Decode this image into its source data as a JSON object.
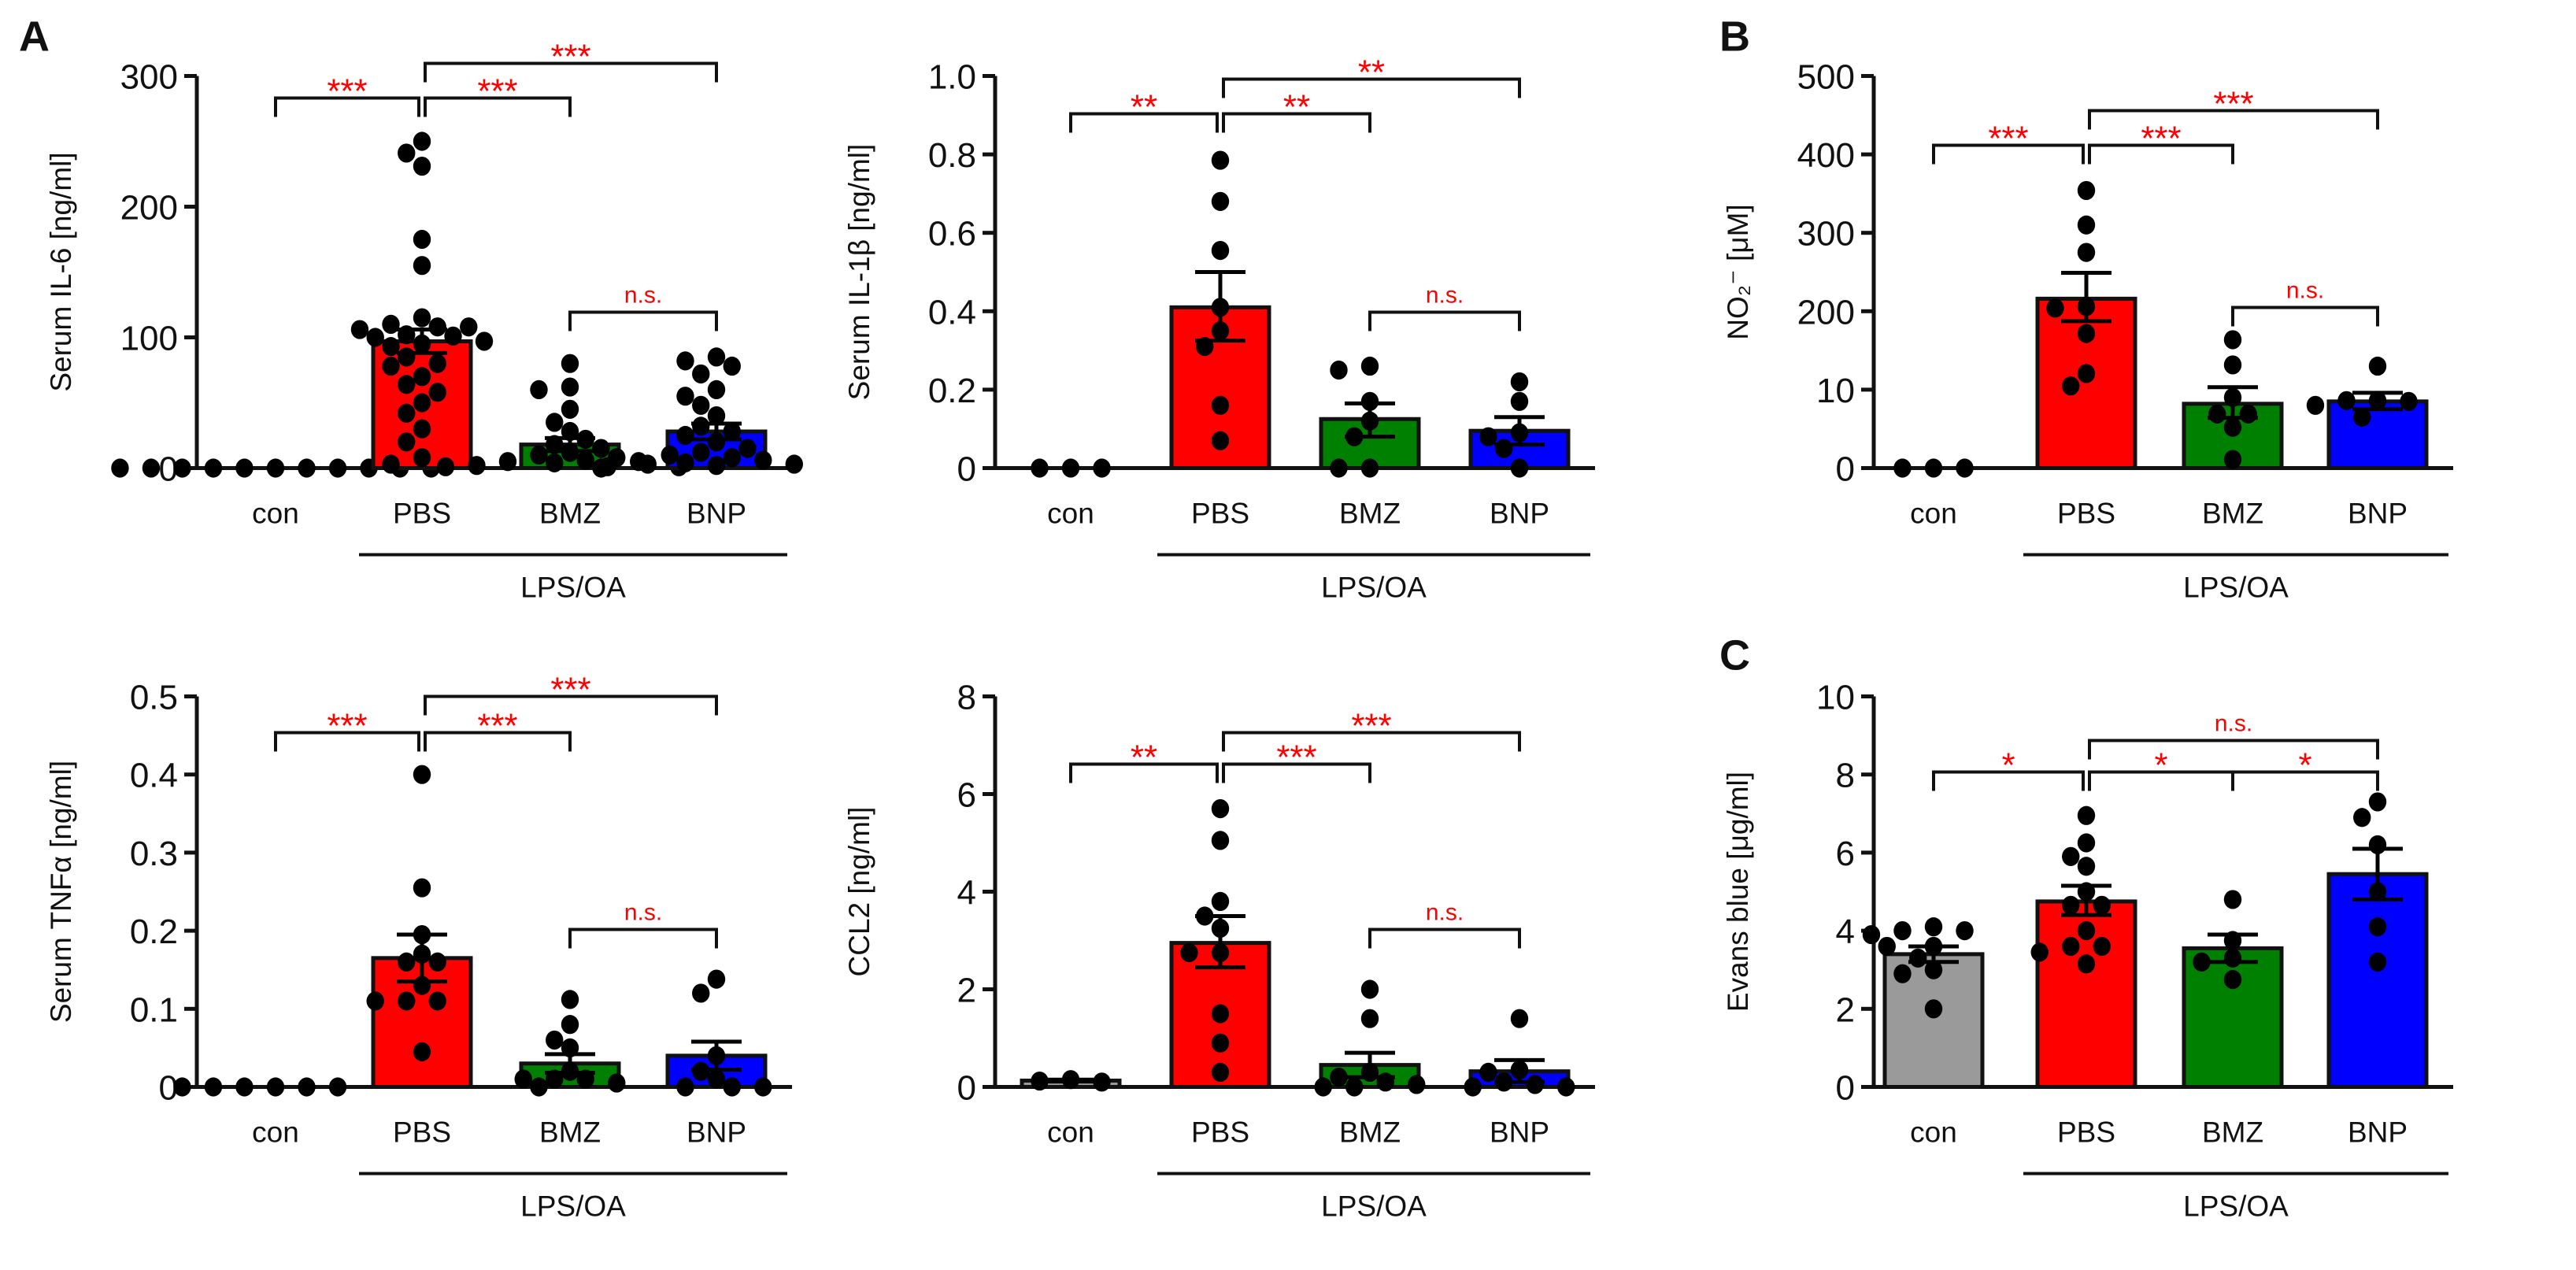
{
  "panel_letters": [
    "A",
    "B",
    "C"
  ],
  "colors": {
    "con": "#9a9a9a",
    "PBS": "#ff0000",
    "BMZ": "#008000",
    "BNP": "#0000ff",
    "significance": "#ff0000",
    "axis": "#111111"
  },
  "chart_data": [
    {
      "type": "bar",
      "title": "",
      "ylabel": "Serum IL-6 [ng/ml]",
      "yticks": [
        0,
        100,
        200,
        300
      ],
      "ytick_labels": [
        "0",
        "100",
        "200",
        "300"
      ],
      "ylim": [
        0,
        300
      ],
      "categories": [
        "con",
        "PBS",
        "BMZ",
        "BNP"
      ],
      "group_label": "LPS/OA",
      "means": [
        0,
        97,
        18,
        28
      ],
      "sem": [
        [
          0,
          0
        ],
        [
          88,
          106
        ],
        [
          13,
          23
        ],
        [
          22,
          34
        ]
      ],
      "points": [
        [
          0,
          0,
          0,
          0,
          0,
          0,
          0,
          0,
          0,
          0,
          0
        ],
        [
          250,
          241,
          231,
          175,
          155,
          115,
          110,
          108,
          108,
          106,
          102,
          101,
          100,
          97,
          95,
          93,
          85,
          80,
          78,
          70,
          64,
          58,
          50,
          42,
          30,
          20,
          8,
          3
        ],
        [
          80,
          62,
          60,
          45,
          35,
          28,
          22,
          18,
          15,
          12,
          10,
          8,
          6,
          5,
          4,
          3,
          2,
          1,
          1,
          0
        ],
        [
          85,
          82,
          78,
          72,
          60,
          55,
          48,
          40,
          32,
          28,
          25,
          20,
          15,
          12,
          10,
          8,
          6,
          5,
          4,
          3,
          2,
          1
        ]
      ],
      "comparisons": [
        {
          "from": 0,
          "to": 1,
          "label": "***"
        },
        {
          "from": 1,
          "to": 2,
          "label": "***"
        },
        {
          "from": 1,
          "to": 3,
          "label": "***"
        },
        {
          "from": 2,
          "to": 3,
          "label": "n.s."
        }
      ]
    },
    {
      "type": "bar",
      "title": "",
      "ylabel": "Serum IL-1β [ng/ml]",
      "yticks": [
        0,
        0.2,
        0.4,
        0.6,
        0.8,
        1.0
      ],
      "ytick_labels": [
        "0",
        "0.2",
        "0.4",
        "0.6",
        "0.8",
        "1.0"
      ],
      "ylim": [
        0,
        1.0
      ],
      "categories": [
        "con",
        "PBS",
        "BMZ",
        "BNP"
      ],
      "group_label": "LPS/OA",
      "means": [
        0,
        0.41,
        0.125,
        0.095
      ],
      "sem": [
        [
          0,
          0
        ],
        [
          0.325,
          0.5
        ],
        [
          0.08,
          0.165
        ],
        [
          0.06,
          0.13
        ]
      ],
      "points": [
        [
          0,
          0,
          0
        ],
        [
          0.785,
          0.68,
          0.555,
          0.41,
          0.35,
          0.31,
          0.16,
          0.07
        ],
        [
          0.26,
          0.25,
          0.17,
          0.12,
          0.08,
          0,
          0
        ],
        [
          0.22,
          0.17,
          0.09,
          0.08,
          0.05,
          0
        ]
      ],
      "comparisons": [
        {
          "from": 0,
          "to": 1,
          "label": "**"
        },
        {
          "from": 1,
          "to": 2,
          "label": "**"
        },
        {
          "from": 1,
          "to": 3,
          "label": "**"
        },
        {
          "from": 2,
          "to": 3,
          "label": "n.s."
        }
      ]
    },
    {
      "type": "bar",
      "title": "",
      "ylabel": "NO₂⁻ [μM]",
      "axis_note": "broken axis; ticks equally spaced",
      "yticks": [
        0,
        10,
        200,
        300,
        400,
        500
      ],
      "ytick_labels": [
        "0",
        "10",
        "200",
        "300",
        "400",
        "500"
      ],
      "ylim": [
        0,
        500
      ],
      "categories": [
        "con",
        "PBS",
        "BMZ",
        "BNP"
      ],
      "group_label": "LPS/OA",
      "means": [
        0,
        216,
        8.2,
        8.5
      ],
      "sem": [
        [
          0,
          0
        ],
        [
          176,
          249
        ],
        [
          6.4,
          16
        ],
        [
          7.5,
          9.6
        ]
      ],
      "points": [
        [
          0,
          0,
          0
        ],
        [
          354,
          310,
          275,
          206,
          204,
          146,
          49,
          19
        ],
        [
          131,
          70,
          9,
          6.9,
          6.9,
          5.2,
          1.1
        ],
        [
          67,
          8.6,
          8.6,
          8.5,
          8,
          6.5
        ]
      ],
      "comparisons": [
        {
          "from": 0,
          "to": 1,
          "label": "***"
        },
        {
          "from": 1,
          "to": 2,
          "label": "***"
        },
        {
          "from": 1,
          "to": 3,
          "label": "***"
        },
        {
          "from": 2,
          "to": 3,
          "label": "n.s."
        }
      ]
    },
    {
      "type": "bar",
      "title": "",
      "ylabel": "Serum TNFα [ng/ml]",
      "yticks": [
        0,
        0.1,
        0.2,
        0.3,
        0.4,
        0.5
      ],
      "ytick_labels": [
        "0",
        "0.1",
        "0.2",
        "0.3",
        "0.4",
        "0.5"
      ],
      "ylim": [
        0,
        0.5
      ],
      "categories": [
        "con",
        "PBS",
        "BMZ",
        "BNP"
      ],
      "group_label": "LPS/OA",
      "means": [
        0,
        0.165,
        0.03,
        0.04
      ],
      "sem": [
        [
          0,
          0
        ],
        [
          0.135,
          0.195
        ],
        [
          0.018,
          0.042
        ],
        [
          0.022,
          0.058
        ]
      ],
      "points": [
        [
          0,
          0,
          0,
          0,
          0,
          0
        ],
        [
          0.4,
          0.255,
          0.195,
          0.17,
          0.16,
          0.16,
          0.13,
          0.11,
          0.11,
          0.11,
          0.045
        ],
        [
          0.112,
          0.08,
          0.06,
          0.05,
          0.02,
          0.01,
          0.01,
          0.01,
          0.005,
          0
        ],
        [
          0.138,
          0.12,
          0.04,
          0.02,
          0.01,
          0,
          0,
          0
        ]
      ],
      "comparisons": [
        {
          "from": 0,
          "to": 1,
          "label": "***"
        },
        {
          "from": 1,
          "to": 2,
          "label": "***"
        },
        {
          "from": 1,
          "to": 3,
          "label": "***"
        },
        {
          "from": 2,
          "to": 3,
          "label": "n.s."
        }
      ]
    },
    {
      "type": "bar",
      "title": "",
      "ylabel": "CCL2 [ng/ml]",
      "yticks": [
        0,
        2,
        4,
        6,
        8
      ],
      "ytick_labels": [
        "0",
        "2",
        "4",
        "6",
        "8"
      ],
      "ylim": [
        0,
        8
      ],
      "categories": [
        "con",
        "PBS",
        "BMZ",
        "BNP"
      ],
      "group_label": "LPS/OA",
      "means": [
        0.13,
        2.95,
        0.45,
        0.32
      ],
      "sem": [
        [
          0.11,
          0.15
        ],
        [
          2.45,
          3.5
        ],
        [
          0.2,
          0.7
        ],
        [
          0.1,
          0.55
        ]
      ],
      "points": [
        [
          0.1,
          0.12,
          0.15
        ],
        [
          5.7,
          5.05,
          3.8,
          3.5,
          3.25,
          2.75,
          2.75,
          1.5,
          0.9,
          0.3
        ],
        [
          2.0,
          1.4,
          0.3,
          0.2,
          0.1,
          0.05,
          0,
          0
        ],
        [
          1.4,
          0.35,
          0.3,
          0.1,
          0.05,
          0,
          0
        ]
      ],
      "comparisons": [
        {
          "from": 0,
          "to": 1,
          "label": "**"
        },
        {
          "from": 1,
          "to": 2,
          "label": "***"
        },
        {
          "from": 1,
          "to": 3,
          "label": "***"
        },
        {
          "from": 2,
          "to": 3,
          "label": "n.s."
        }
      ]
    },
    {
      "type": "bar",
      "title": "",
      "ylabel": "Evans blue [μg/ml]",
      "yticks": [
        0,
        2,
        4,
        6,
        8,
        10
      ],
      "ytick_labels": [
        "0",
        "2",
        "4",
        "6",
        "8",
        "10"
      ],
      "ylim": [
        0,
        10
      ],
      "categories": [
        "con",
        "PBS",
        "BMZ",
        "BNP"
      ],
      "group_label": "LPS/OA",
      "means": [
        3.4,
        4.75,
        3.55,
        5.45
      ],
      "sem": [
        [
          3.2,
          3.6
        ],
        [
          4.4,
          5.15
        ],
        [
          3.2,
          3.9
        ],
        [
          4.8,
          6.1
        ]
      ],
      "points": [
        [
          4.0,
          4.0,
          4.1,
          3.9,
          3.6,
          3.6,
          3.3,
          3.0,
          2.9,
          2.0
        ],
        [
          6.95,
          6.25,
          5.9,
          5.65,
          5.0,
          4.65,
          4.65,
          4.0,
          3.6,
          3.6,
          3.45,
          3.15
        ],
        [
          4.8,
          3.75,
          3.3,
          3.2,
          2.75
        ],
        [
          7.3,
          6.9,
          6.2,
          5.0,
          4.1,
          3.2
        ]
      ],
      "comparisons": [
        {
          "from": 0,
          "to": 1,
          "label": "*"
        },
        {
          "from": 1,
          "to": 2,
          "label": "*"
        },
        {
          "from": 2,
          "to": 3,
          "label": "*"
        },
        {
          "from": 1,
          "to": 3,
          "label": "n.s."
        }
      ]
    }
  ]
}
